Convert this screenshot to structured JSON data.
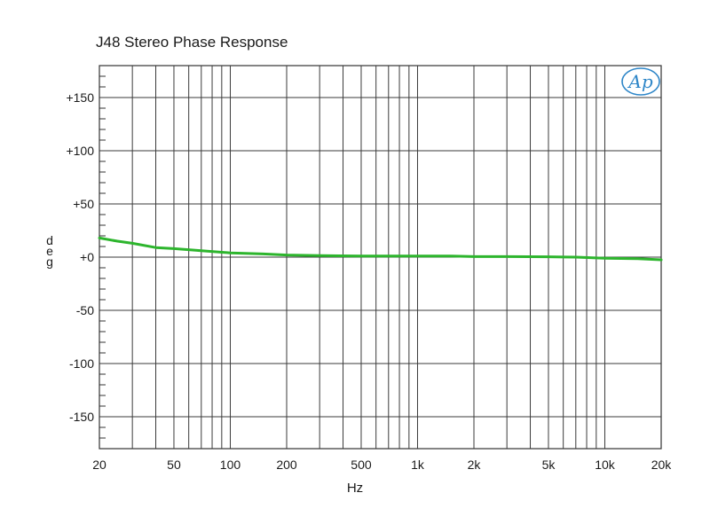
{
  "chart_data": {
    "type": "line",
    "title": "J48 Stereo Phase Response",
    "xlabel": "Hz",
    "ylabel": "deg",
    "xscale": "log",
    "xlim": [
      20,
      20000
    ],
    "ylim": [
      -180,
      180
    ],
    "grid": true,
    "logo": "Ap",
    "x_tick_labels": [
      {
        "value": 20,
        "label": "20"
      },
      {
        "value": 50,
        "label": "50"
      },
      {
        "value": 100,
        "label": "100"
      },
      {
        "value": 200,
        "label": "200"
      },
      {
        "value": 500,
        "label": "500"
      },
      {
        "value": 1000,
        "label": "1k"
      },
      {
        "value": 2000,
        "label": "2k"
      },
      {
        "value": 5000,
        "label": "5k"
      },
      {
        "value": 10000,
        "label": "10k"
      },
      {
        "value": 20000,
        "label": "20k"
      }
    ],
    "y_tick_labels": [
      {
        "value": 150,
        "label": "+150"
      },
      {
        "value": 100,
        "label": "+100"
      },
      {
        "value": 50,
        "label": "+50"
      },
      {
        "value": 0,
        "label": "+0"
      },
      {
        "value": -50,
        "label": "-50"
      },
      {
        "value": -100,
        "label": "-100"
      },
      {
        "value": -150,
        "label": "-150"
      }
    ],
    "series": [
      {
        "color": "#2db52d",
        "x": [
          20,
          25,
          30,
          40,
          50,
          70,
          100,
          150,
          200,
          300,
          500,
          700,
          1000,
          1500,
          2000,
          3000,
          5000,
          7000,
          10000,
          15000,
          20000
        ],
        "y": [
          18,
          15,
          13,
          9,
          8,
          6,
          4,
          3,
          2,
          1.5,
          1,
          1,
          1,
          1,
          0.5,
          0.5,
          0.3,
          0,
          -1,
          -1.5,
          -2.5
        ]
      }
    ]
  }
}
